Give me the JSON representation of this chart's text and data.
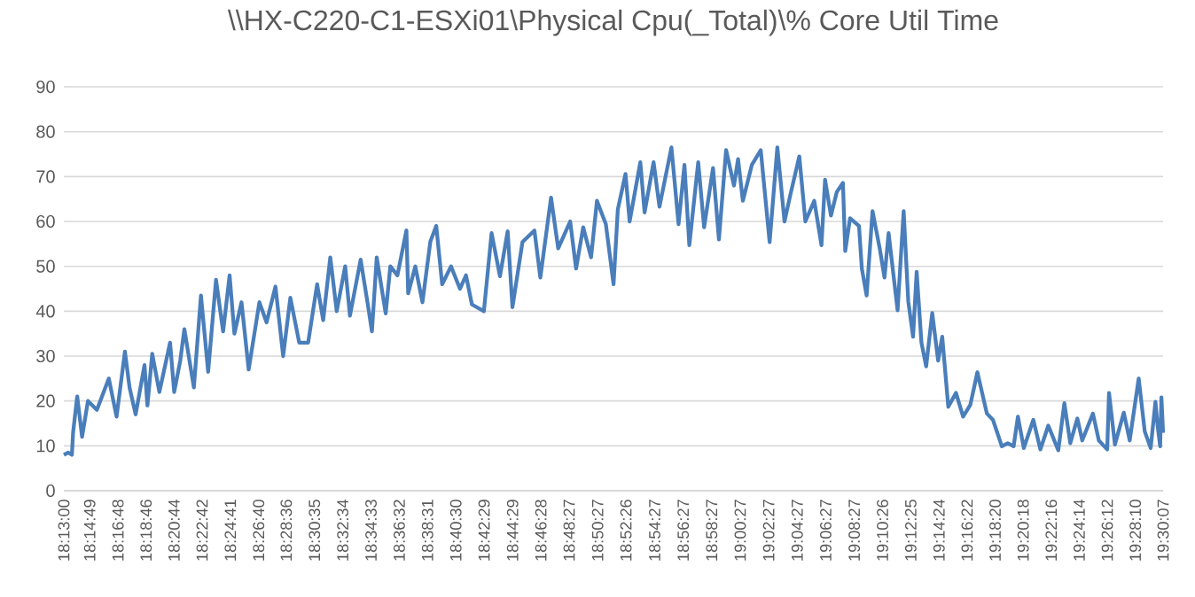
{
  "chart_data": {
    "type": "line",
    "title": "\\\\HX-C220-C1-ESXi01\\Physical Cpu(_Total)\\% Core Util Time",
    "x": [
      18.21667,
      18.2219,
      18.2261,
      18.2275,
      18.2323,
      18.238,
      18.2449,
      18.2553,
      18.2693,
      18.2783,
      18.2881,
      18.2935,
      18.3006,
      18.311,
      18.3144,
      18.32,
      18.3284,
      18.3409,
      18.3457,
      18.3528,
      18.3576,
      18.3687,
      18.377,
      18.3854,
      18.3946,
      18.4029,
      18.4105,
      18.4161,
      18.4244,
      18.4328,
      18.4453,
      18.4537,
      18.4641,
      18.4731,
      18.4815,
      18.4919,
      18.5023,
      18.5128,
      18.5199,
      18.5282,
      18.5357,
      18.5456,
      18.5512,
      18.5637,
      18.5721,
      18.5769,
      18.5825,
      18.593,
      18.5984,
      18.6067,
      18.6172,
      18.6193,
      18.6276,
      18.636,
      18.6452,
      18.6521,
      18.659,
      18.6694,
      18.6798,
      18.6869,
      18.6938,
      18.7078,
      18.7168,
      18.7266,
      18.7356,
      18.7412,
      18.7529,
      18.7669,
      18.7738,
      18.7863,
      18.7947,
      18.8087,
      18.8156,
      18.8239,
      18.8331,
      18.84,
      18.8504,
      18.8594,
      18.8644,
      18.8734,
      18.8782,
      18.8907,
      18.8957,
      18.9062,
      18.9131,
      18.9271,
      18.9354,
      18.9423,
      18.948,
      18.9584,
      18.9653,
      18.9757,
      18.9826,
      18.991,
      19.0002,
      19.005,
      19.0106,
      19.0211,
      19.0315,
      19.0419,
      19.0509,
      19.0593,
      19.0662,
      19.0766,
      19.0837,
      19.0941,
      19.1025,
      19.1067,
      19.1136,
      19.1205,
      19.1276,
      19.1303,
      19.1359,
      19.1464,
      19.1497,
      19.1553,
      19.1622,
      19.1706,
      19.1762,
      19.181,
      19.1915,
      19.1986,
      19.204,
      19.2096,
      19.2138,
      19.2194,
      19.2249,
      19.232,
      19.2389,
      19.2437,
      19.2508,
      19.2598,
      19.2681,
      19.2765,
      19.2848,
      19.2959,
      19.303,
      19.3134,
      19.3203,
      19.3272,
      19.3322,
      19.3391,
      19.3502,
      19.3585,
      19.3677,
      19.3794,
      19.3865,
      19.3934,
      19.4017,
      19.4074,
      19.4199,
      19.4268,
      19.4366,
      19.4387,
      19.4456,
      19.456,
      19.4629,
      19.4734,
      19.4805,
      19.4874,
      19.493,
      19.4955,
      19.4985,
      19.5,
      19.50194
    ],
    "values": [
      8,
      8.5,
      8,
      13,
      21,
      12,
      20,
      18,
      25,
      16.5,
      31,
      23,
      17,
      28,
      19,
      30.5,
      22,
      33,
      22,
      29,
      36,
      23,
      43.5,
      26.5,
      47,
      35.5,
      48,
      35,
      42,
      27,
      42,
      37.5,
      45.5,
      30,
      43,
      33,
      33,
      46,
      38,
      52,
      40,
      50,
      39,
      51.5,
      41.5,
      35.5,
      52,
      39.5,
      50,
      48,
      58,
      44,
      50,
      42,
      55.5,
      59,
      46,
      50,
      45,
      48,
      41.5,
      40,
      57.4,
      47.8,
      57.8,
      40.9,
      55.4,
      58,
      47.5,
      65.3,
      54,
      60,
      49.5,
      58.7,
      52,
      64.6,
      59.4,
      46,
      62.7,
      70.6,
      60,
      73.2,
      62,
      73.2,
      63.3,
      76.5,
      59.4,
      72.6,
      54.7,
      73.2,
      58.7,
      71.9,
      56,
      75.9,
      68,
      73.9,
      64.6,
      72.6,
      75.9,
      55.4,
      76.5,
      60,
      66,
      74.5,
      60,
      64.6,
      54.7,
      69.3,
      61.3,
      66.6,
      68.6,
      53.4,
      60.7,
      59,
      49.5,
      43.5,
      62.3,
      54,
      47.5,
      57.4,
      40.2,
      62.3,
      42.2,
      34.3,
      48.8,
      33,
      27.7,
      39.6,
      29,
      34.3,
      18.7,
      21.8,
      16.5,
      19.1,
      26.4,
      17.2,
      15.8,
      9.9,
      10.6,
      9.9,
      16.5,
      9.5,
      15.8,
      9.2,
      14.5,
      9,
      19.5,
      10.6,
      16.1,
      11.2,
      17.2,
      11.2,
      9.2,
      21.8,
      10.3,
      17.4,
      11.2,
      25,
      13.2,
      9.5,
      19.8,
      14.5,
      9.9,
      20.8,
      12.9
    ],
    "color": "#4a7ebb",
    "line_style": "solid",
    "marker": "none",
    "grid": "y",
    "xlim": [
      18.21667,
      19.50194
    ],
    "xticks": [
      {
        "value": 18.21667,
        "label": "18:13:00"
      },
      {
        "value": 18.24694,
        "label": "18:14:49"
      },
      {
        "value": 18.28,
        "label": "18:16:48"
      },
      {
        "value": 18.31278,
        "label": "18:18:46"
      },
      {
        "value": 18.34556,
        "label": "18:20:44"
      },
      {
        "value": 18.37833,
        "label": "18:22:42"
      },
      {
        "value": 18.41139,
        "label": "18:24:41"
      },
      {
        "value": 18.44444,
        "label": "18:26:40"
      },
      {
        "value": 18.47667,
        "label": "18:28:36"
      },
      {
        "value": 18.50972,
        "label": "18:30:35"
      },
      {
        "value": 18.54278,
        "label": "18:32:34"
      },
      {
        "value": 18.57583,
        "label": "18:34:33"
      },
      {
        "value": 18.60889,
        "label": "18:36:32"
      },
      {
        "value": 18.64194,
        "label": "18:38:31"
      },
      {
        "value": 18.675,
        "label": "18:40:30"
      },
      {
        "value": 18.70806,
        "label": "18:42:29"
      },
      {
        "value": 18.74139,
        "label": "18:44:29"
      },
      {
        "value": 18.77444,
        "label": "18:46:28"
      },
      {
        "value": 18.8075,
        "label": "18:48:27"
      },
      {
        "value": 18.84083,
        "label": "18:50:27"
      },
      {
        "value": 18.87389,
        "label": "18:52:26"
      },
      {
        "value": 18.9075,
        "label": "18:54:27"
      },
      {
        "value": 18.94083,
        "label": "18:56:27"
      },
      {
        "value": 18.97417,
        "label": "18:58:27"
      },
      {
        "value": 19.0075,
        "label": "19:00:27"
      },
      {
        "value": 19.04083,
        "label": "19:02:27"
      },
      {
        "value": 19.07417,
        "label": "19:04:27"
      },
      {
        "value": 19.1075,
        "label": "19:06:27"
      },
      {
        "value": 19.14083,
        "label": "19:08:27"
      },
      {
        "value": 19.17389,
        "label": "19:10:26"
      },
      {
        "value": 19.20694,
        "label": "19:12:25"
      },
      {
        "value": 19.24,
        "label": "19:14:24"
      },
      {
        "value": 19.27278,
        "label": "19:16:22"
      },
      {
        "value": 19.30556,
        "label": "19:18:20"
      },
      {
        "value": 19.33833,
        "label": "19:20:18"
      },
      {
        "value": 19.37111,
        "label": "19:22:16"
      },
      {
        "value": 19.40389,
        "label": "19:24:14"
      },
      {
        "value": 19.43667,
        "label": "19:26:12"
      },
      {
        "value": 19.46944,
        "label": "19:28:10"
      },
      {
        "value": 19.50194,
        "label": "19:30:07"
      }
    ],
    "ylim": [
      0,
      90
    ],
    "yticks": [
      0,
      10,
      20,
      30,
      40,
      50,
      60,
      70,
      80,
      90
    ]
  }
}
